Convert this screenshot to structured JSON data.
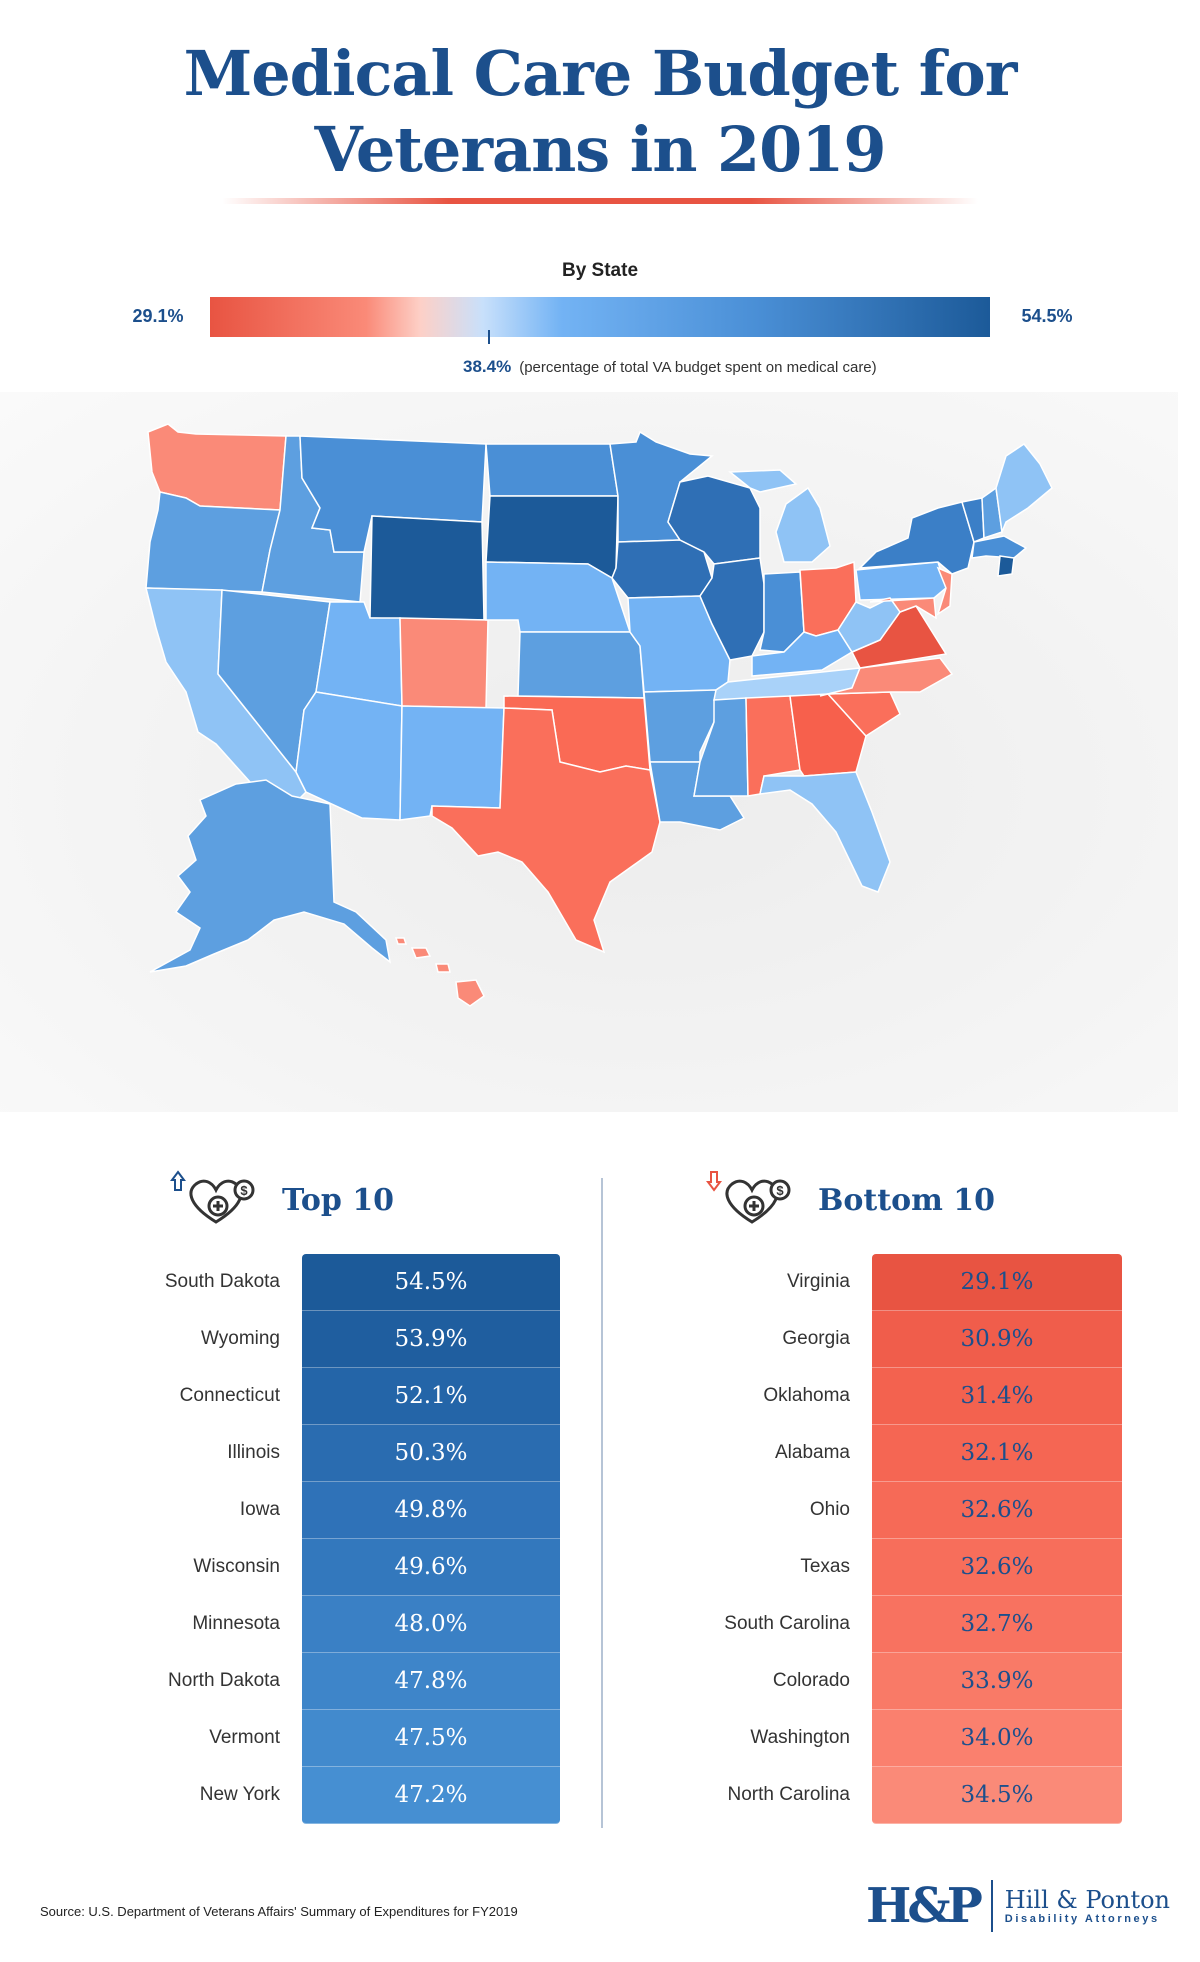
{
  "title": {
    "line1": "Medical Care Budget for",
    "line2": "Veterans in 2019"
  },
  "legend": {
    "title": "By State",
    "min_label": "29.1%",
    "max_label": "54.5%",
    "min": 29.1,
    "max": 54.5,
    "mid_value": "38.4%",
    "mid_note": "(percentage of total VA budget spent on medical care)",
    "mid": 38.4
  },
  "colors": {
    "title": "#1c4f8c",
    "accent_red": "#e85442",
    "accent_blue": "#1c5a99",
    "map_light_blue": "#8fc3f5",
    "map_salmon": "#fa8a78"
  },
  "map_states": [
    {
      "name": "WA",
      "color": "#fa8a78"
    },
    {
      "name": "OR",
      "color": "#5d9fe0"
    },
    {
      "name": "CA",
      "color": "#8fc3f5"
    },
    {
      "name": "ID",
      "color": "#5d9fe0"
    },
    {
      "name": "NV",
      "color": "#5d9fe0"
    },
    {
      "name": "MT",
      "color": "#4a8fd6"
    },
    {
      "name": "WY",
      "color": "#1c5a99"
    },
    {
      "name": "UT",
      "color": "#73b3f4"
    },
    {
      "name": "AZ",
      "color": "#73b3f4"
    },
    {
      "name": "CO",
      "color": "#fa8a78"
    },
    {
      "name": "NM",
      "color": "#73b3f4"
    },
    {
      "name": "ND",
      "color": "#4a8fd6"
    },
    {
      "name": "SD",
      "color": "#1c5a99"
    },
    {
      "name": "NE",
      "color": "#73b3f4"
    },
    {
      "name": "KS",
      "color": "#5d9fe0"
    },
    {
      "name": "OK",
      "color": "#fa6a55"
    },
    {
      "name": "TX",
      "color": "#fa6f5b"
    },
    {
      "name": "MN",
      "color": "#4a8fd6"
    },
    {
      "name": "IA",
      "color": "#2f6fb5"
    },
    {
      "name": "MO",
      "color": "#73b3f4"
    },
    {
      "name": "AR",
      "color": "#5d9fe0"
    },
    {
      "name": "LA",
      "color": "#5d9fe0"
    },
    {
      "name": "WI",
      "color": "#2f6fb5"
    },
    {
      "name": "IL",
      "color": "#2f6fb5"
    },
    {
      "name": "MI",
      "color": "#8fc3f5"
    },
    {
      "name": "IN",
      "color": "#4a8fd6"
    },
    {
      "name": "OH",
      "color": "#fa6f5b"
    },
    {
      "name": "KY",
      "color": "#73b3f4"
    },
    {
      "name": "TN",
      "color": "#a9d2f9"
    },
    {
      "name": "MS",
      "color": "#5d9fe0"
    },
    {
      "name": "AL",
      "color": "#fa6f5b"
    },
    {
      "name": "GA",
      "color": "#f7604c"
    },
    {
      "name": "FL",
      "color": "#8fc3f5"
    },
    {
      "name": "SC",
      "color": "#fa6f5b"
    },
    {
      "name": "NC",
      "color": "#fa8a78"
    },
    {
      "name": "VA",
      "color": "#e85442"
    },
    {
      "name": "WV",
      "color": "#8fc3f5"
    },
    {
      "name": "PA",
      "color": "#73b3f4"
    },
    {
      "name": "NY",
      "color": "#3b7fc7"
    },
    {
      "name": "NJ",
      "color": "#fa8a78"
    },
    {
      "name": "MD",
      "color": "#fa8a78"
    },
    {
      "name": "VT",
      "color": "#3b7fc7"
    },
    {
      "name": "NH",
      "color": "#5d9fe0"
    },
    {
      "name": "ME",
      "color": "#8fc3f5"
    },
    {
      "name": "MA",
      "color": "#4a8fd6"
    },
    {
      "name": "CT",
      "color": "#1c5a99"
    },
    {
      "name": "AK",
      "color": "#5d9fe0"
    },
    {
      "name": "HI",
      "color": "#fa8a78"
    }
  ],
  "top10": {
    "heading": "Top 10",
    "rows": [
      {
        "state": "South Dakota",
        "value": "54.5%",
        "color": "#1c5a99"
      },
      {
        "state": "Wyoming",
        "value": "53.9%",
        "color": "#1f5e9f"
      },
      {
        "state": "Connecticut",
        "value": "52.1%",
        "color": "#2465a8"
      },
      {
        "state": "Illinois",
        "value": "50.3%",
        "color": "#2a6cb0"
      },
      {
        "state": "Iowa",
        "value": "49.8%",
        "color": "#2f72b8"
      },
      {
        "state": "Wisconsin",
        "value": "49.6%",
        "color": "#3378bd"
      },
      {
        "state": "Minnesota",
        "value": "48.0%",
        "color": "#3a80c5"
      },
      {
        "state": "North Dakota",
        "value": "47.8%",
        "color": "#3e85c9"
      },
      {
        "state": "Vermont",
        "value": "47.5%",
        "color": "#428acd"
      },
      {
        "state": "New York",
        "value": "47.2%",
        "color": "#468fd2"
      }
    ]
  },
  "bottom10": {
    "heading": "Bottom 10",
    "rows": [
      {
        "state": "Virginia",
        "value": "29.1%",
        "color": "#e85442"
      },
      {
        "state": "Georgia",
        "value": "30.9%",
        "color": "#f05d4b"
      },
      {
        "state": "Oklahoma",
        "value": "31.4%",
        "color": "#f3624f"
      },
      {
        "state": "Alabama",
        "value": "32.1%",
        "color": "#f56653"
      },
      {
        "state": "Ohio",
        "value": "32.6%",
        "color": "#f66a57"
      },
      {
        "state": "Texas",
        "value": "32.6%",
        "color": "#f76e5b"
      },
      {
        "state": "South Carolina",
        "value": "32.7%",
        "color": "#f87260"
      },
      {
        "state": "Colorado",
        "value": "33.9%",
        "color": "#f97a67"
      },
      {
        "state": "Washington",
        "value": "34.0%",
        "color": "#fa806e"
      },
      {
        "state": "North Carolina",
        "value": "34.5%",
        "color": "#fa8a78"
      }
    ]
  },
  "source": "Source: U.S. Department of Veterans Affairs' Summary of Expenditures for FY2019",
  "logo": {
    "mark": "H&P",
    "name": "Hill & Ponton",
    "tagline": "Disability Attorneys"
  }
}
